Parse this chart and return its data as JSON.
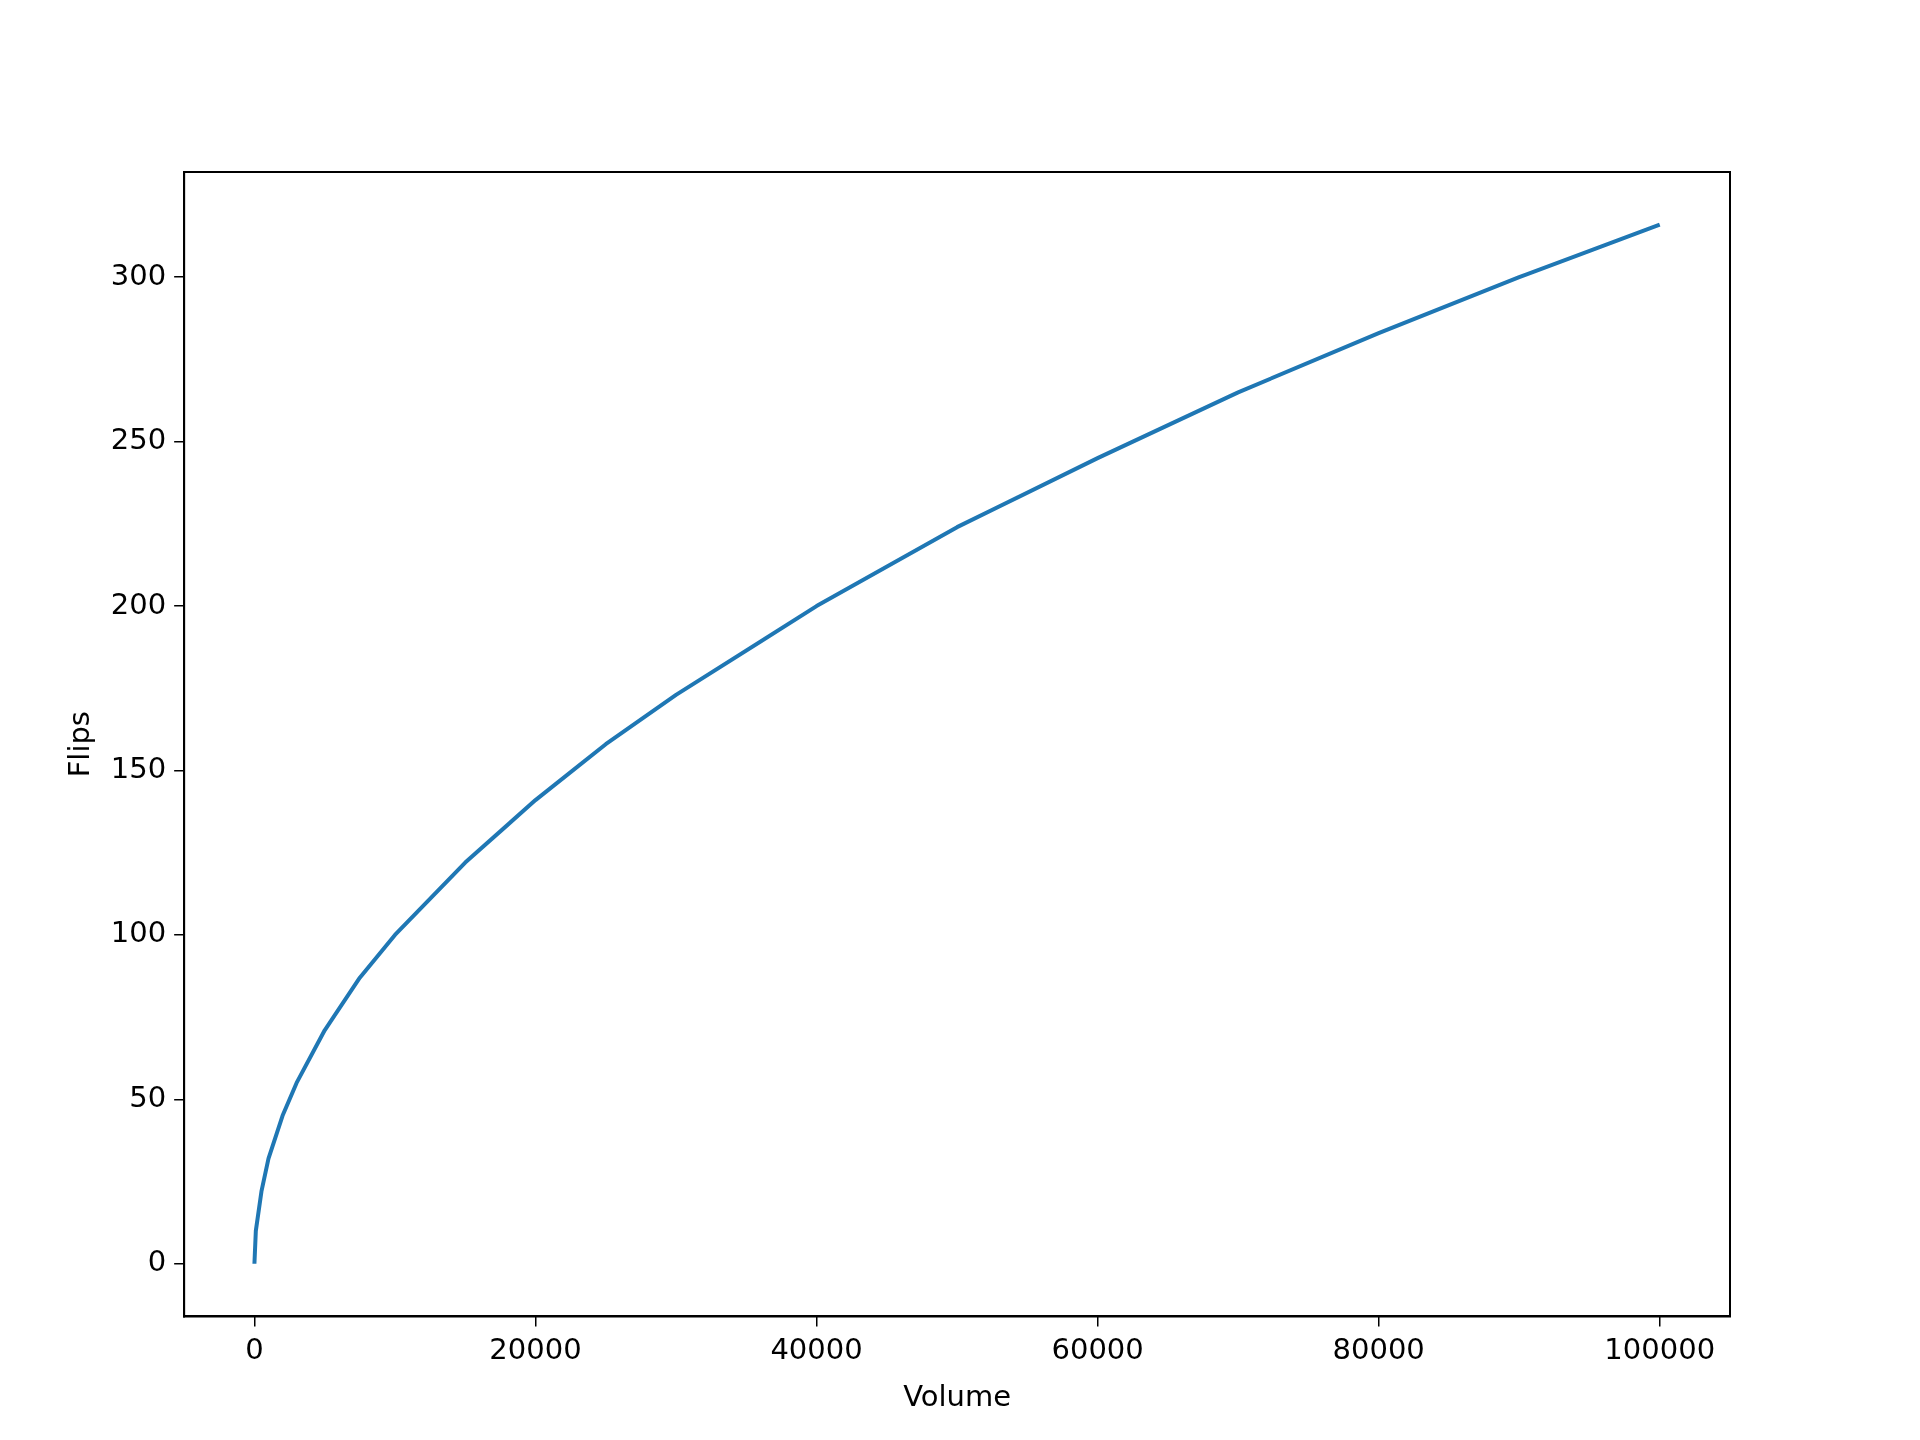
{
  "chart_data": {
    "type": "line",
    "xlabel": "Volume",
    "ylabel": "Flips",
    "x": [
      0,
      100,
      500,
      1000,
      2000,
      3000,
      5000,
      7500,
      10000,
      15000,
      20000,
      25000,
      30000,
      40000,
      50000,
      60000,
      70000,
      80000,
      90000,
      100000
    ],
    "series": [
      {
        "color": "#1f77b4",
        "values": [
          0,
          10,
          22,
          32,
          45,
          55,
          71,
          87,
          100,
          122,
          141,
          158,
          173,
          200,
          224,
          245,
          265,
          283,
          300,
          316
        ]
      }
    ],
    "xlim": [
      -5000,
      105000
    ],
    "xticks": [
      0,
      20000,
      40000,
      60000,
      80000,
      100000
    ],
    "ylim": [
      -16,
      332
    ],
    "yticks": [
      0,
      50,
      100,
      150,
      200,
      250,
      300
    ],
    "grid": false,
    "legend": false,
    "marker": "none",
    "line_style": "solid"
  }
}
